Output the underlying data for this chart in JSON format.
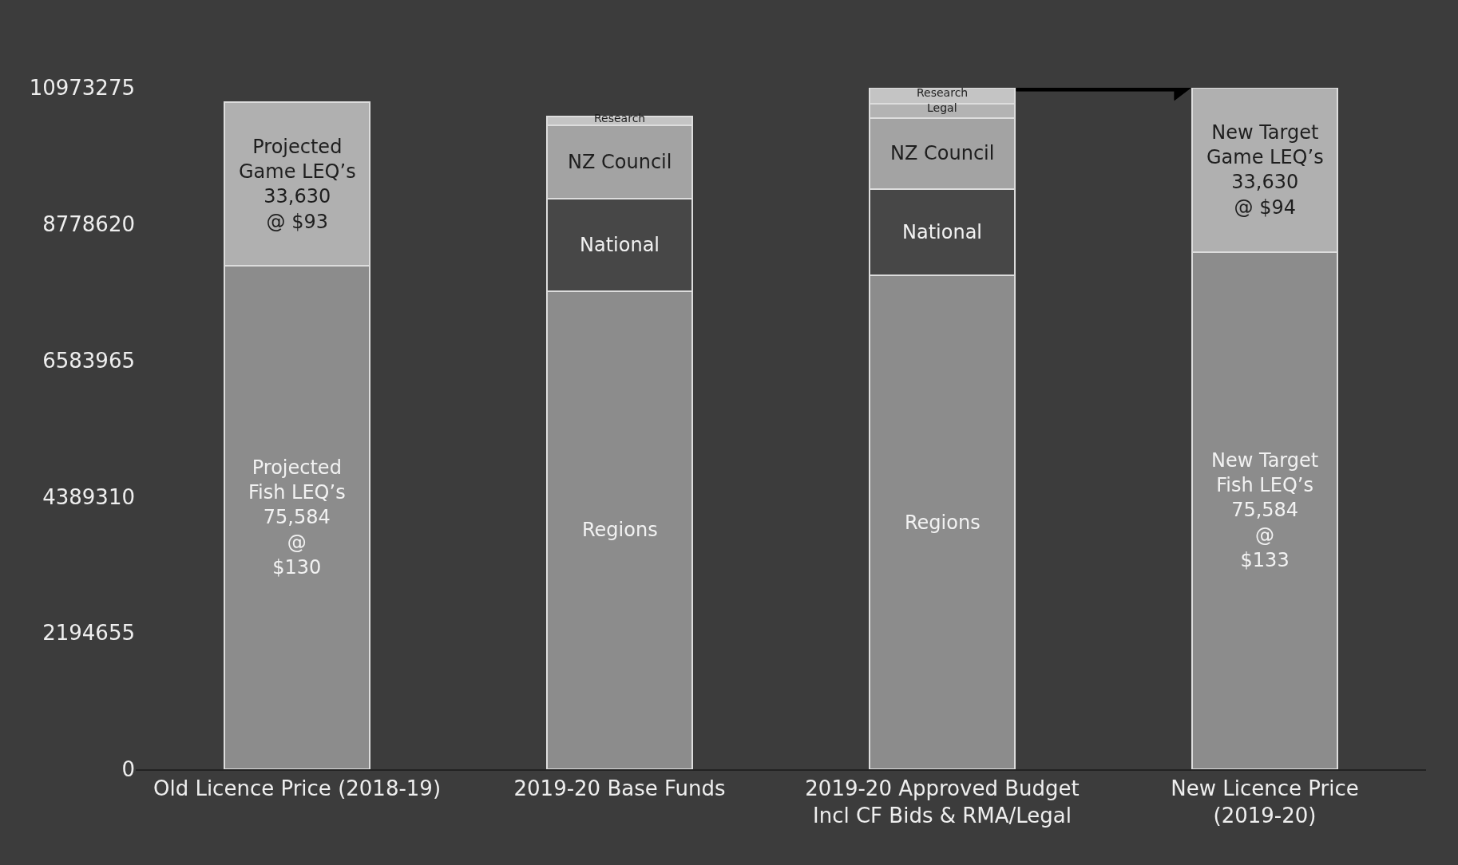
{
  "chart_data": {
    "type": "bar",
    "stacked": true,
    "categories": [
      "Old Licence Price (2018-19)",
      "2019-20 Base Funds",
      "2019-20 Approved Budget\nIncl CF Bids & RMA/Legal",
      "New Licence Price\n(2019-20)"
    ],
    "series": [
      {
        "color": "#8c8c8c",
        "values": [
          8110000,
          7700000,
          7950000,
          8330000
        ],
        "value_labels": [
          "Projected\nFish LEQ’s\n75,584\n@\n$130",
          "Regions",
          "Regions",
          "New Target\nFish LEQ’s\n75,584\n@\n$133"
        ]
      },
      {
        "color": "#474747",
        "values": [
          null,
          1490000,
          1390000,
          null
        ],
        "value_labels": [
          null,
          "National",
          "National",
          null
        ]
      },
      {
        "color": "#a3a3a3",
        "values": [
          null,
          1180000,
          1150000,
          null
        ],
        "value_labels": [
          null,
          "NZ Council",
          "NZ Council",
          null
        ]
      },
      {
        "color": "#b3b3b3",
        "values": [
          null,
          null,
          220000,
          null
        ],
        "value_labels": [
          null,
          null,
          "Legal",
          null
        ]
      },
      {
        "color": "#c4c4c4",
        "values": [
          null,
          140000,
          260000,
          null
        ],
        "value_labels": [
          null,
          "Research",
          "Research",
          null
        ]
      },
      {
        "color": "#b0b0b0",
        "values": [
          2630000,
          null,
          null,
          2640000
        ],
        "value_labels": [
          "Projected\nGame LEQ’s\n33,630\n@ $93",
          null,
          null,
          "New Target\nGame LEQ’s\n33,630\n@ $94"
        ]
      }
    ],
    "ylim": [
      0,
      10973275
    ],
    "yticks": [
      0,
      2194655,
      4389310,
      6583965,
      8778620,
      10973275
    ],
    "grid": false
  }
}
